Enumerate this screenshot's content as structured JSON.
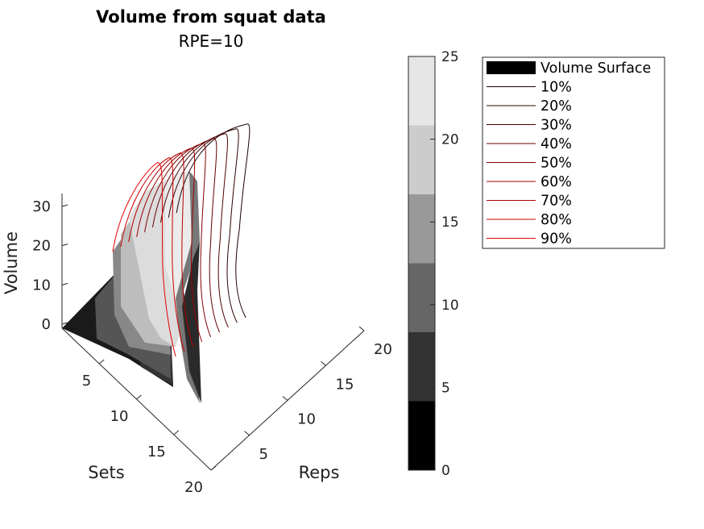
{
  "chart_data": {
    "type": "surface3d",
    "title": "Volume from squat data",
    "subtitle": "RPE=10",
    "xlabel": "Sets",
    "ylabel": "Reps",
    "zlabel": "Volume",
    "xlim": [
      0,
      20
    ],
    "ylim": [
      0,
      20
    ],
    "zlim": [
      0,
      35
    ],
    "x_ticks": [
      "5",
      "10",
      "15",
      "20"
    ],
    "y_ticks": [
      "5",
      "10",
      "15",
      "20"
    ],
    "z_ticks": [
      "0",
      "10",
      "20",
      "30"
    ],
    "colorbar": {
      "range": [
        0,
        25
      ],
      "ticks": [
        "0",
        "5",
        "10",
        "15",
        "20",
        "25"
      ],
      "levels": [
        "#000000",
        "#333333",
        "#666666",
        "#999999",
        "#cccccc",
        "#e6e6e6"
      ]
    },
    "legend": {
      "placement": "outside right",
      "entries": [
        {
          "label": "Volume Surface",
          "color": "#000000",
          "kind": "patch"
        },
        {
          "label": "10%",
          "color": "#1a0000",
          "kind": "line"
        },
        {
          "label": "20%",
          "color": "#330000",
          "kind": "line"
        },
        {
          "label": "30%",
          "color": "#4d0000",
          "kind": "line"
        },
        {
          "label": "40%",
          "color": "#660000",
          "kind": "line"
        },
        {
          "label": "50%",
          "color": "#800000",
          "kind": "line"
        },
        {
          "label": "60%",
          "color": "#990000",
          "kind": "line"
        },
        {
          "label": "70%",
          "color": "#b30000",
          "kind": "line"
        },
        {
          "label": "80%",
          "color": "#cc0000",
          "kind": "line"
        },
        {
          "label": "90%",
          "color": "#e60000",
          "kind": "line"
        }
      ]
    }
  }
}
